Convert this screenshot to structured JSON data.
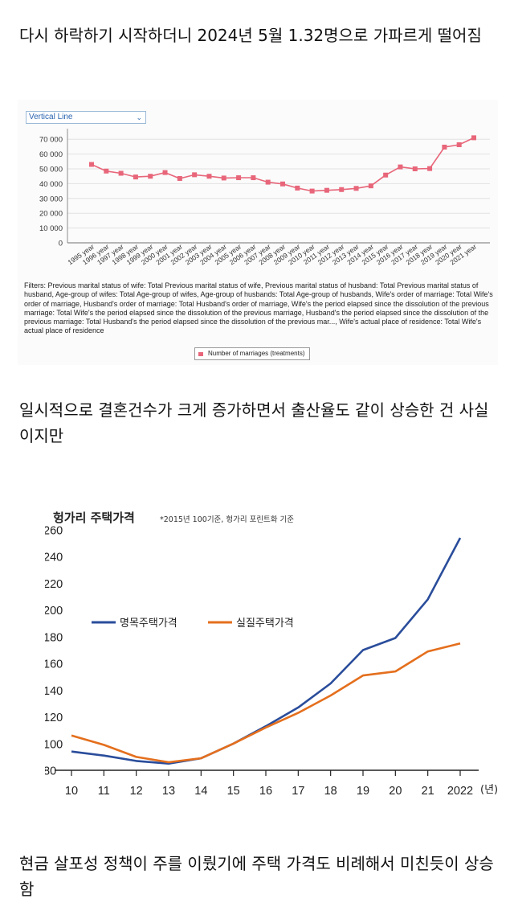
{
  "paragraphs": {
    "p1": "다시 하락하기 시작하더니 2024년 5월 1.32명으로 가파르게 떨어짐",
    "p2": "일시적으로 결혼건수가 크게 증가하면서 출산율도 같이 상승한 건 사실이지만",
    "p3": "현금 살포성 정책이 주를 이뤘기에 주택 가격도 비례해서 미친듯이 상승함"
  },
  "chart1_ui": {
    "dropdown_value": "Vertical Line",
    "filters_text": "Filters: Previous marital status of wife: Total Previous marital status of wife, Previous marital status of husband: Total Previous marital status of husband, Age-group of wifes: Total Age-group of wifes, Age-group of husbands: Total Age-group of husbands, Wife's order of marriage: Total Wife's order of marriage, Husband's order of marriage: Total Husband's order of marriage, Wife's the period elapsed since the dissolution of the previous marriage: Total Wife's the period elapsed since the dissolution of the previous marriage, Husband's the period elapsed since the dissolution of the previous marriage: Total Husband's the period elapsed since the dissolution of the previous mar..., Wife's actual place of residence: Total Wife's actual place of residence",
    "legend_label": "Number of marriages (treatments)"
  },
  "chart_data": [
    {
      "type": "line",
      "title": "",
      "xlabel": "",
      "ylabel": "",
      "categories": [
        "1995 year",
        "1996 year",
        "1997 year",
        "1998 year",
        "1999 year",
        "2000 year",
        "2001 year",
        "2002 year",
        "2003 year",
        "2004 year",
        "2005 year",
        "2006 year",
        "2007 year",
        "2008 year",
        "2009 year",
        "2010 year",
        "2011 year",
        "2012 year",
        "2013 year",
        "2014 year",
        "2015 year",
        "2016 year",
        "2017 year",
        "2018 year",
        "2019 year",
        "2020 year",
        "2021 year"
      ],
      "series": [
        {
          "name": "Number of marriages (treatments)",
          "values": [
            53000,
            48500,
            47000,
            44500,
            45000,
            47500,
            43500,
            46000,
            45000,
            43800,
            44000,
            44000,
            41000,
            39800,
            37000,
            35000,
            35500,
            36000,
            36800,
            38500,
            45800,
            51300,
            50000,
            50200,
            64700,
            66300,
            71000
          ]
        }
      ],
      "yticks": [
        "0",
        "10 000",
        "20 000",
        "30 000",
        "40 000",
        "50 000",
        "60 000",
        "70 000"
      ],
      "ylim": [
        0,
        75000
      ],
      "grid": true,
      "color": "#e8667a"
    },
    {
      "type": "line",
      "title": "헝가리 주택가격",
      "subtitle": "*2015년 100기준, 헝가리 포린트화 기준",
      "categories": [
        "10",
        "11",
        "12",
        "13",
        "14",
        "15",
        "16",
        "17",
        "18",
        "19",
        "20",
        "21",
        "2022"
      ],
      "x_unit": "(년)",
      "series": [
        {
          "name": "명목주택가격",
          "color": "#2a4d9b",
          "values": [
            94,
            91,
            87,
            85,
            89,
            100,
            113,
            127,
            145,
            170,
            179,
            208,
            254
          ]
        },
        {
          "name": "실질주택가격",
          "color": "#e46f1d",
          "values": [
            106,
            99,
            90,
            86,
            89,
            100,
            112,
            123,
            136,
            151,
            154,
            169,
            175
          ]
        }
      ],
      "yticks": [
        "80",
        "100",
        "120",
        "140",
        "160",
        "180",
        "200",
        "220",
        "240",
        "260"
      ],
      "ylim": [
        80,
        260
      ],
      "grid": false
    }
  ]
}
